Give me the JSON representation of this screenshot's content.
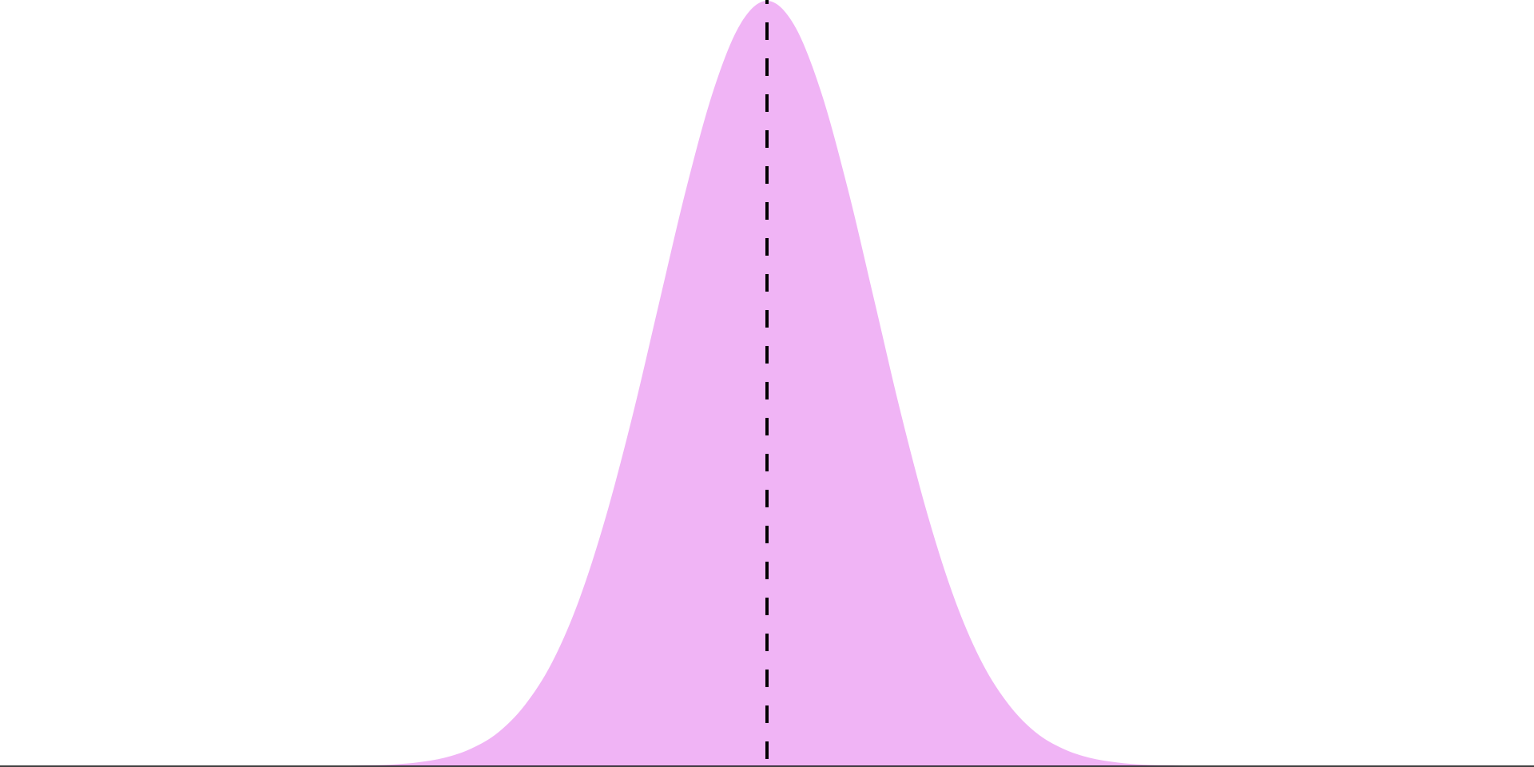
{
  "chart_data": {
    "type": "area",
    "x": [
      -4,
      -3.75,
      -3.5,
      -3.25,
      -3,
      -2.75,
      -2.5,
      -2.25,
      -2,
      -1.75,
      -1.5,
      -1.25,
      -1,
      -0.75,
      -0.5,
      -0.25,
      0,
      0.25,
      0.5,
      0.75,
      1,
      1.25,
      1.5,
      1.75,
      2,
      2.25,
      2.5,
      2.75,
      3,
      3.25,
      3.5,
      3.75,
      4
    ],
    "values": [
      0,
      0.001,
      0.002,
      0.005,
      0.011,
      0.023,
      0.044,
      0.08,
      0.135,
      0.216,
      0.325,
      0.458,
      0.607,
      0.755,
      0.882,
      0.969,
      1,
      0.969,
      0.882,
      0.755,
      0.607,
      0.458,
      0.325,
      0.216,
      0.135,
      0.08,
      0.044,
      0.023,
      0.011,
      0.005,
      0.002,
      0.001,
      0
    ],
    "color": "#f0b4f5",
    "vline": 0,
    "vline_color": "#000000",
    "xlim": [
      -7.13,
      7.13
    ],
    "ylim": [
      0,
      1
    ]
  }
}
